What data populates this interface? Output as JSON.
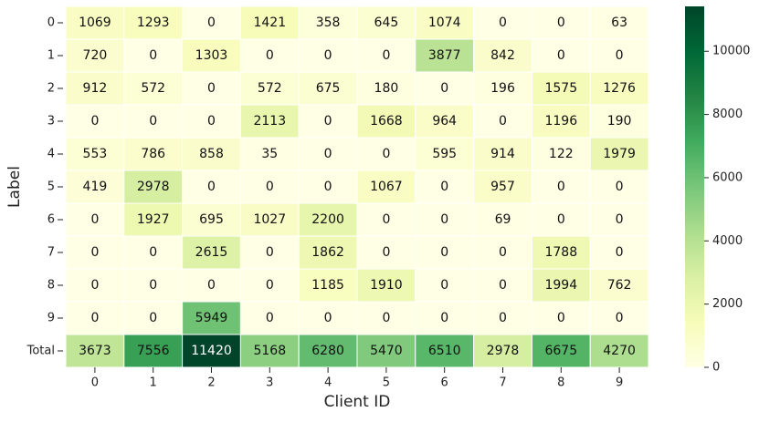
{
  "chart_data": {
    "type": "heatmap",
    "xlabel": "Client ID",
    "ylabel": "Label",
    "columns": [
      "0",
      "1",
      "2",
      "3",
      "4",
      "5",
      "6",
      "7",
      "8",
      "9"
    ],
    "rows": [
      "0",
      "1",
      "2",
      "3",
      "4",
      "5",
      "6",
      "7",
      "8",
      "9",
      "Total"
    ],
    "values": [
      [
        1069,
        1293,
        0,
        1421,
        358,
        645,
        1074,
        0,
        0,
        63
      ],
      [
        720,
        0,
        1303,
        0,
        0,
        0,
        3877,
        842,
        0,
        0
      ],
      [
        912,
        572,
        0,
        572,
        675,
        180,
        0,
        196,
        1575,
        1276
      ],
      [
        0,
        0,
        0,
        2113,
        0,
        1668,
        964,
        0,
        1196,
        190
      ],
      [
        553,
        786,
        858,
        35,
        0,
        0,
        595,
        914,
        122,
        1979
      ],
      [
        419,
        2978,
        0,
        0,
        0,
        1067,
        0,
        957,
        0,
        0
      ],
      [
        0,
        1927,
        695,
        1027,
        2200,
        0,
        0,
        69,
        0,
        0
      ],
      [
        0,
        0,
        2615,
        0,
        1862,
        0,
        0,
        0,
        1788,
        0
      ],
      [
        0,
        0,
        0,
        0,
        1185,
        1910,
        0,
        0,
        1994,
        762
      ],
      [
        0,
        0,
        5949,
        0,
        0,
        0,
        0,
        0,
        0,
        0
      ],
      [
        3673,
        7556,
        11420,
        5168,
        6280,
        5470,
        6510,
        2978,
        6675,
        4270
      ]
    ],
    "zlim": [
      0,
      11420
    ],
    "zticks": [
      0,
      2000,
      4000,
      6000,
      8000,
      10000
    ],
    "colors": [
      "#ffffe5",
      "#f7fcb9",
      "#d9f0a3",
      "#addd8e",
      "#78c679",
      "#41ab5d",
      "#238443",
      "#006837",
      "#004529"
    ]
  }
}
